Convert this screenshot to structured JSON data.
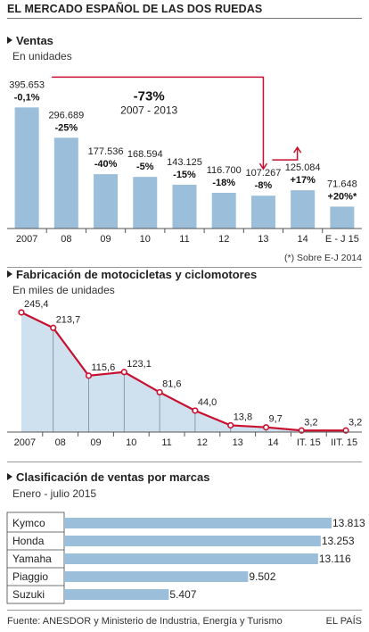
{
  "header": {
    "title": "EL MERCADO ESPAÑOL DE LAS DOS RUEDAS"
  },
  "colors": {
    "bar": "#9bbedb",
    "area": "#cfe0ee",
    "accent": "#c8102e",
    "axis": "#555555"
  },
  "chart_data": [
    {
      "type": "bar",
      "title": "Ventas",
      "subtitle": "En unidades",
      "categories": [
        "2007",
        "08",
        "09",
        "10",
        "11",
        "12",
        "13",
        "14",
        "E - J 15"
      ],
      "values": [
        395653,
        296689,
        177536,
        168594,
        143125,
        116700,
        107267,
        125084,
        71648
      ],
      "value_labels": [
        "395.653",
        "296.689",
        "177.536",
        "168.594",
        "143.125",
        "116.700",
        "107.267",
        "125.084",
        "71.648"
      ],
      "change_labels": [
        "-0,1%",
        "-25%",
        "-40%",
        "-5%",
        "-15%",
        "-18%",
        "-8%",
        "+17%",
        "+20%*"
      ],
      "annotation": {
        "value": "-73%",
        "range": "2007 - 2013"
      },
      "footnote": "(*) Sobre E-J 2014",
      "ylim": [
        0,
        420000
      ]
    },
    {
      "type": "area",
      "title": "Fabricación de motocicletas y ciclomotores",
      "subtitle": "En miles de unidades",
      "categories": [
        "2007",
        "08",
        "09",
        "10",
        "11",
        "12",
        "13",
        "14",
        "IT. 15",
        "IIT. 15"
      ],
      "values": [
        245.4,
        213.7,
        115.6,
        123.1,
        81.6,
        44.0,
        13.8,
        9.7,
        3.2,
        3.2
      ],
      "value_labels": [
        "245,4",
        "213,7",
        "115,6",
        "123,1",
        "81,6",
        "44,0",
        "13,8",
        "9,7",
        "3,2",
        "3,2"
      ],
      "ylim": [
        0,
        260
      ]
    },
    {
      "type": "bar",
      "orientation": "horizontal",
      "title": "Clasificación de ventas por marcas",
      "subtitle": "Enero - julio 2015",
      "categories": [
        "Kymco",
        "Honda",
        "Yamaha",
        "Piaggio",
        "Suzuki"
      ],
      "values": [
        13813,
        13253,
        13116,
        9502,
        5407
      ],
      "value_labels": [
        "13.813",
        "13.253",
        "13.116",
        "9.502",
        "5.407"
      ],
      "xlim": [
        0,
        13813
      ]
    }
  ],
  "footer": {
    "source": "Fuente:  ANESDOR y Ministerio de Industria, Energía y Turismo",
    "brand": "EL PAÍS"
  }
}
